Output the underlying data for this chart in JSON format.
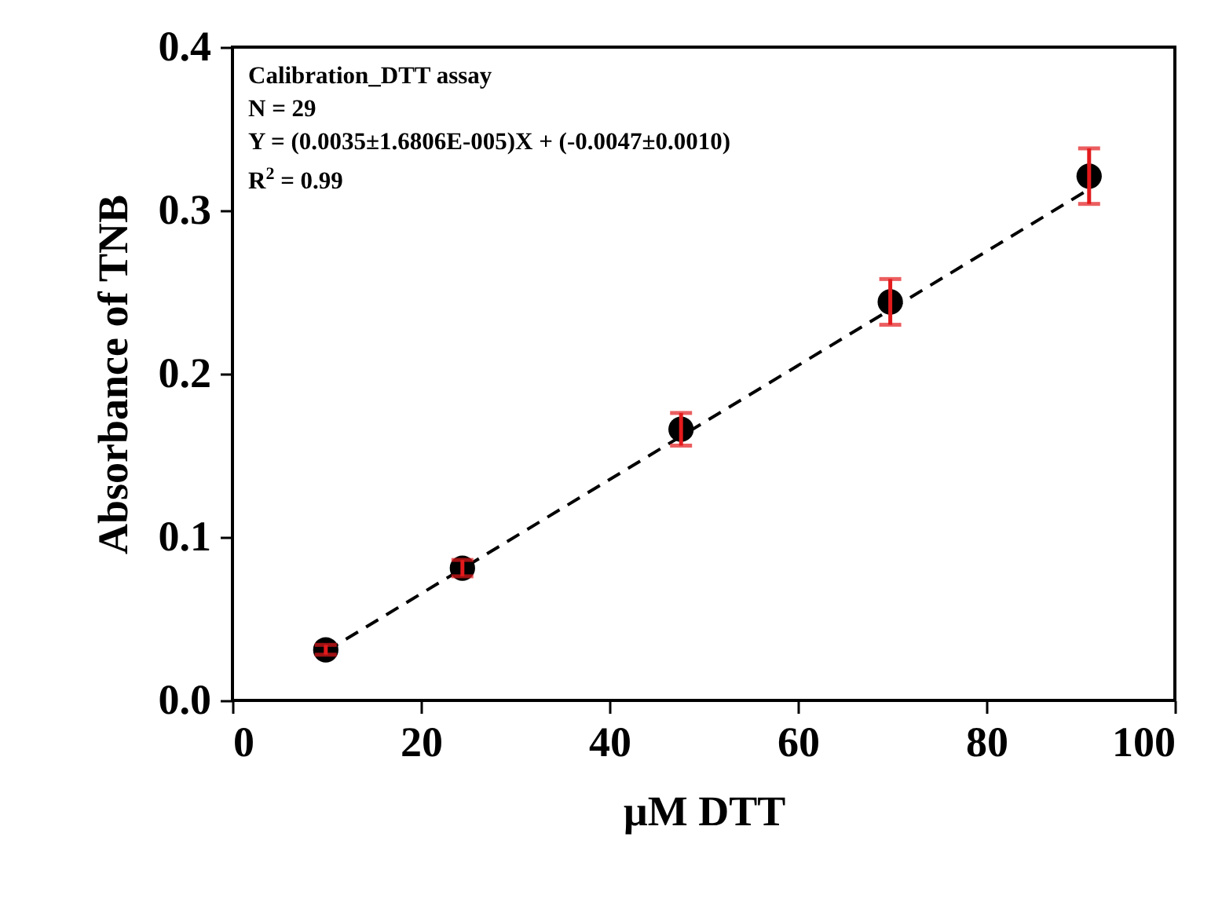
{
  "chart_data": {
    "type": "scatter",
    "xlabel": "µM DTT",
    "ylabel": "Absorbance of TNB",
    "annotations": [
      "Calibration_DTT assay",
      "N = 29",
      "Y = (0.0035±1.6806E-005)X + (-0.0047±0.0010)",
      "R$^{2}$ = 0.99"
    ],
    "series": [
      {
        "type": "scatter",
        "color": "#000000",
        "x": [
          9.9,
          24.4,
          47.6,
          69.8,
          90.9
        ],
        "values": [
          0.031,
          0.081,
          0.166,
          0.244,
          0.321
        ],
        "errors": [
          0.003,
          0.005,
          0.01,
          0.014,
          0.017
        ],
        "marker": "circle"
      },
      {
        "type": "line",
        "color": "#000000",
        "x": [
          9.9,
          90.9
        ],
        "values": [
          0.03,
          0.313
        ],
        "line_style": "dashed"
      }
    ],
    "xlim": [
      0,
      100
    ],
    "xticks": [
      0,
      20,
      40,
      60,
      80,
      100
    ],
    "ylim": [
      0,
      0.4
    ],
    "yticks": [
      {
        "value": 0,
        "label": "0.0"
      },
      {
        "value": 0.1,
        "label": "0.1"
      },
      {
        "value": 0.2,
        "label": "0.2"
      },
      {
        "value": 0.3,
        "label": "0.3"
      },
      {
        "value": 0.4,
        "label": "0.4"
      }
    ],
    "grid": false,
    "legend": false
  }
}
